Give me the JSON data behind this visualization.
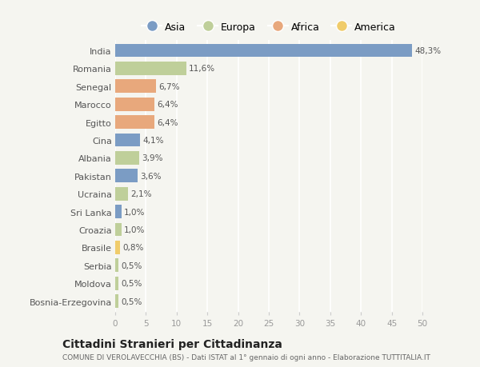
{
  "countries": [
    "India",
    "Romania",
    "Senegal",
    "Marocco",
    "Egitto",
    "Cina",
    "Albania",
    "Pakistan",
    "Ucraina",
    "Sri Lanka",
    "Croazia",
    "Brasile",
    "Serbia",
    "Moldova",
    "Bosnia-Erzegovina"
  ],
  "values": [
    48.3,
    11.6,
    6.7,
    6.4,
    6.4,
    4.1,
    3.9,
    3.6,
    2.1,
    1.0,
    1.0,
    0.8,
    0.5,
    0.5,
    0.5
  ],
  "labels": [
    "48,3%",
    "11,6%",
    "6,7%",
    "6,4%",
    "6,4%",
    "4,1%",
    "3,9%",
    "3,6%",
    "2,1%",
    "1,0%",
    "1,0%",
    "0,8%",
    "0,5%",
    "0,5%",
    "0,5%"
  ],
  "continents": [
    "Asia",
    "Europa",
    "Africa",
    "Africa",
    "Africa",
    "Asia",
    "Europa",
    "Asia",
    "Europa",
    "Asia",
    "Europa",
    "America",
    "Europa",
    "Europa",
    "Europa"
  ],
  "colors": {
    "Asia": "#7b9cc4",
    "Europa": "#bfcf9a",
    "Africa": "#e8a87c",
    "America": "#f0cc6a"
  },
  "legend_order": [
    "Asia",
    "Europa",
    "Africa",
    "America"
  ],
  "title": "Cittadini Stranieri per Cittadinanza",
  "subtitle": "COMUNE DI VEROLAVECCHIA (BS) - Dati ISTAT al 1° gennaio di ogni anno - Elaborazione TUTTITALIA.IT",
  "xlim": [
    0,
    50
  ],
  "xticks": [
    0,
    5,
    10,
    15,
    20,
    25,
    30,
    35,
    40,
    45,
    50
  ],
  "background_color": "#f5f5f0",
  "grid_color": "#ffffff",
  "bar_height": 0.75,
  "label_fontsize": 7.5,
  "ytick_fontsize": 8,
  "xtick_fontsize": 7.5,
  "title_fontsize": 10,
  "subtitle_fontsize": 6.5,
  "legend_fontsize": 9
}
